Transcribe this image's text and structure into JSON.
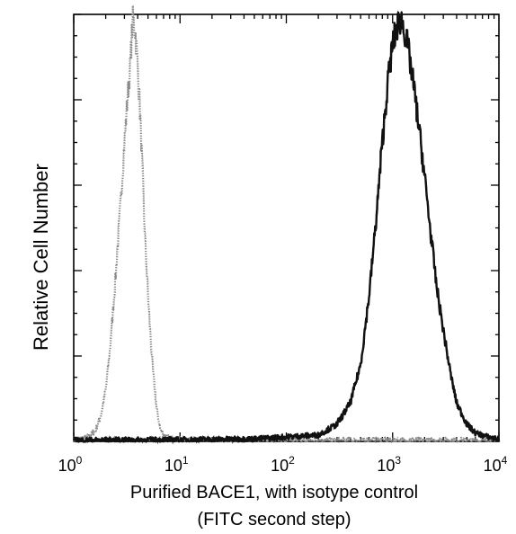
{
  "chart_data": {
    "type": "line",
    "title": "",
    "xlabel_line1": "Purified BACE1, with isotype control",
    "xlabel_line2": "(FITC second step)",
    "ylabel": "Relative Cell Number",
    "xscale": "log",
    "xlim": [
      1,
      10000
    ],
    "ylim": [
      0,
      100
    ],
    "x_ticks": [
      {
        "base": "10",
        "exp": "0",
        "value": 1
      },
      {
        "base": "10",
        "exp": "1",
        "value": 10
      },
      {
        "base": "10",
        "exp": "2",
        "value": 100
      },
      {
        "base": "10",
        "exp": "3",
        "value": 1000
      },
      {
        "base": "10",
        "exp": "4",
        "value": 10000
      }
    ],
    "y_major_ticks": [
      0,
      20,
      40,
      60,
      80,
      100
    ],
    "grid": false,
    "legend": "none",
    "series": [
      {
        "style": "dotted-gray",
        "color": "#888888",
        "x": [
          1.0,
          1.3,
          1.6,
          1.8,
          2.0,
          2.2,
          2.5,
          2.8,
          3.0,
          3.2,
          3.4,
          3.5,
          3.6,
          3.8,
          4.0,
          4.3,
          4.6,
          5.0,
          5.5,
          6.0,
          6.5,
          7.0,
          8.0,
          10.0,
          20.0,
          100.0,
          1000.0,
          10000.0
        ],
        "y": [
          0.5,
          0.8,
          2.5,
          6,
          12,
          22,
          40,
          58,
          70,
          80,
          88,
          94,
          99,
          96,
          88,
          72,
          52,
          34,
          18,
          8,
          3,
          1.5,
          0.8,
          0.5,
          0.4,
          0.3,
          0.3,
          0.3
        ]
      },
      {
        "style": "solid-black",
        "color": "#111111",
        "x": [
          1.0,
          10.0,
          50.0,
          200.0,
          300.0,
          400.0,
          500.0,
          600.0,
          700.0,
          800.0,
          900.0,
          1000.0,
          1100.0,
          1200.0,
          1300.0,
          1400.0,
          1600.0,
          1800.0,
          2000.0,
          2300.0,
          2600.0,
          3000.0,
          3500.0,
          4000.0,
          5000.0,
          6000.0,
          8000.0,
          10000.0
        ],
        "y": [
          0.3,
          0.4,
          0.6,
          1.5,
          4,
          9,
          18,
          34,
          52,
          70,
          84,
          93,
          97,
          99,
          96,
          92,
          82,
          72,
          62,
          48,
          36,
          26,
          16,
          9,
          4,
          2,
          1,
          0.5
        ]
      }
    ]
  }
}
